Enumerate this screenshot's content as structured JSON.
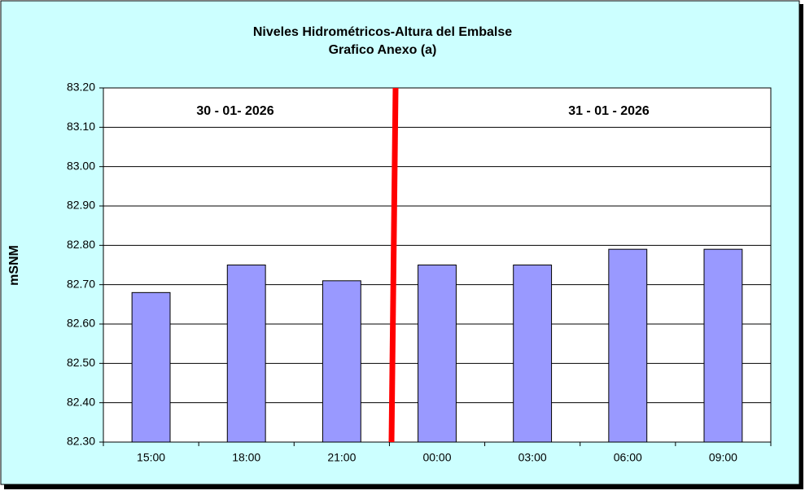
{
  "chart_data": {
    "type": "bar",
    "title": "Niveles Hidrométricos-Altura del Embalse",
    "subtitle": "Grafico Anexo (a)",
    "y_label": "mSNM",
    "annotations": [
      "30 - 01- 2026",
      "31 - 01 - 2026"
    ],
    "categories": [
      "15:00",
      "18:00",
      "21:00",
      "00:00",
      "03:00",
      "06:00",
      "09:00"
    ],
    "values": [
      82.68,
      82.75,
      82.71,
      82.75,
      82.75,
      82.79,
      82.79
    ],
    "color": "#9999ff",
    "ylim": [
      82.3,
      83.2
    ],
    "yticks": [
      {
        "value": 82.3,
        "label": "82.30"
      },
      {
        "value": 82.4,
        "label": "82.40"
      },
      {
        "value": 82.5,
        "label": "82.50"
      },
      {
        "value": 82.6,
        "label": "82.60"
      },
      {
        "value": 82.7,
        "label": "82.70"
      },
      {
        "value": 82.8,
        "label": "82.80"
      },
      {
        "value": 82.9,
        "label": "82.90"
      },
      {
        "value": 83.0,
        "label": "83.00"
      },
      {
        "value": 83.1,
        "label": "83.10"
      },
      {
        "value": 83.2,
        "label": "83.20"
      }
    ],
    "grid": true
  }
}
